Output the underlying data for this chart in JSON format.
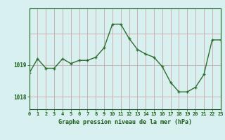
{
  "hours": [
    0,
    1,
    2,
    3,
    4,
    5,
    6,
    7,
    8,
    9,
    10,
    11,
    12,
    13,
    14,
    15,
    16,
    17,
    18,
    19,
    20,
    21,
    22,
    23
  ],
  "pressure": [
    1018.75,
    1019.2,
    1018.9,
    1018.9,
    1019.2,
    1019.05,
    1019.15,
    1019.15,
    1019.25,
    1019.55,
    1020.3,
    1020.3,
    1019.85,
    1019.5,
    1019.35,
    1019.25,
    1018.95,
    1018.45,
    1018.15,
    1018.15,
    1018.3,
    1018.7,
    1019.8,
    1019.8
  ],
  "bg_color": "#d8f0f0",
  "line_color": "#2d6e2d",
  "marker_color": "#2d6e2d",
  "vgrid_color": "#c8a8a8",
  "hgrid_color": "#c8a8a8",
  "axis_label_color": "#1a5c1a",
  "tick_color": "#1a5c1a",
  "xlabel": "Graphe pression niveau de la mer (hPa)",
  "ytick_labels": [
    "1018",
    "1019"
  ],
  "ytick_values": [
    1018.0,
    1019.0
  ],
  "ylim": [
    1017.6,
    1020.8
  ],
  "xlim": [
    0,
    23
  ]
}
